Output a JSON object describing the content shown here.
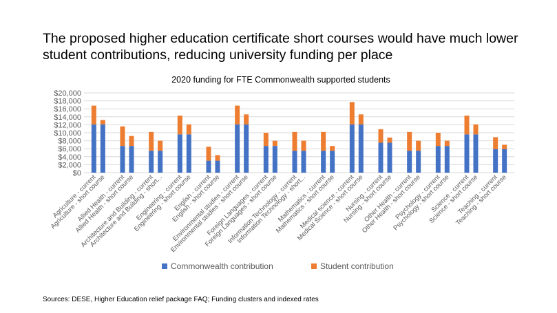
{
  "headline": {
    "line1": "The proposed higher education certificate short courses would have much lower",
    "line2": "student contributions, reducing university funding per place"
  },
  "sources": "Sources: DESE, Higher Education relief package FAQ; Funding clusters and indexed rates",
  "colors": {
    "commonwealth": "#4472C4",
    "student": "#ED7D31",
    "gridline": "#D9D9D9",
    "axis_text": "#595959"
  },
  "chart_data": {
    "type": "bar",
    "stacked": true,
    "title": "2020 funding for FTE Commonwealth supported students",
    "xlabel": "",
    "ylabel": "",
    "ylim": [
      0,
      20000
    ],
    "yticks": [
      "$0",
      "$2,000",
      "$4,000",
      "$6,000",
      "$8,000",
      "$10,000",
      "$12,000",
      "$14,000",
      "$16,000",
      "$18,000",
      "$20,000"
    ],
    "grid": true,
    "legend_position": "bottom",
    "categories": [
      "Agriculture - current",
      "Agriculture - short course",
      "Allied Health - current",
      "Allied Health - short course",
      "Architecture and Building - current",
      "Architecture and Building - short...",
      "Engineering - current",
      "Engineering - short course",
      "English - current",
      "English - short course",
      "Environmental studies - current",
      "Environmental studies - short course",
      "Foreign Languages - current",
      "Foreign Languages - short course",
      "Information Technology - current",
      "Information Technology - short...",
      "Mathematics - current",
      "Mathematics - short course",
      "Medical science - current",
      "Medical Science - short course",
      "Nursing - current",
      "Nursing - short course",
      "Other Health - current",
      "Other Health - short course",
      "Psychology - current",
      "Psychology - short course",
      "Science - current",
      "Science - short course",
      "Teaching - current",
      "Teaching - short course"
    ],
    "series": [
      {
        "name": "Commonwealth contribution",
        "values": [
          12100,
          12100,
          6700,
          6700,
          5500,
          5500,
          9600,
          9600,
          3000,
          3000,
          12100,
          12100,
          6700,
          6700,
          5500,
          5500,
          5500,
          5500,
          12100,
          12100,
          7500,
          7500,
          5500,
          5500,
          6700,
          6700,
          9600,
          9600,
          5900,
          5900
        ]
      },
      {
        "name": "Student contribution",
        "values": [
          4700,
          1100,
          4900,
          2500,
          4700,
          2500,
          4700,
          2500,
          3500,
          1400,
          4700,
          2500,
          3300,
          1300,
          4700,
          2500,
          4700,
          1200,
          5600,
          2500,
          3400,
          1300,
          4700,
          2500,
          3300,
          1300,
          4700,
          2500,
          3000,
          1100
        ]
      }
    ]
  }
}
